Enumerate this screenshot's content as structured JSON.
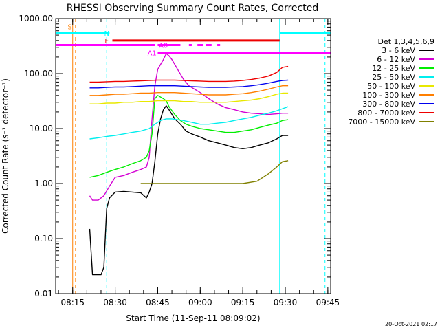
{
  "window": {
    "background": "#ffffff"
  },
  "chart_data": {
    "type": "line",
    "title": "RHESSI Observing Summary Count Rates, Corrected",
    "xlabel": "Start Time (11-Sep-11 08:09:02)",
    "ylabel": "Corrected Count Rate (s⁻¹ detector⁻¹)",
    "yscale": "log",
    "ylim": [
      0.01,
      1000
    ],
    "xlim": [
      "08:09",
      "09:46"
    ],
    "x_ticks": [
      "08:15",
      "08:30",
      "08:45",
      "09:00",
      "09:15",
      "09:30",
      "09:45"
    ],
    "y_ticks": [
      "0.01",
      "0.10",
      "1.00",
      "10.00",
      "100.00",
      "1000.00"
    ],
    "grid": false,
    "legend_title": "Det 1,3,4,5,6,9",
    "legend_position": "right",
    "timestamp": "20-Oct-2021 02:17",
    "series": [
      {
        "name": "3 - 6 keV",
        "color": "#000000",
        "points": [
          [
            "08:21",
            0.15
          ],
          [
            "08:22",
            0.022
          ],
          [
            "08:24",
            0.022
          ],
          [
            "08:25",
            0.022
          ],
          [
            "08:26",
            0.03
          ],
          [
            "08:27",
            0.35
          ],
          [
            "08:28",
            0.55
          ],
          [
            "08:30",
            0.7
          ],
          [
            "08:33",
            0.72
          ],
          [
            "08:36",
            0.7
          ],
          [
            "08:39",
            0.68
          ],
          [
            "08:41",
            0.55
          ],
          [
            "08:42",
            0.7
          ],
          [
            "08:43",
            1.0
          ],
          [
            "08:44",
            2.5
          ],
          [
            "08:45",
            8
          ],
          [
            "08:46",
            15
          ],
          [
            "08:47",
            22
          ],
          [
            "08:48",
            26
          ],
          [
            "08:49",
            22
          ],
          [
            "08:51",
            15
          ],
          [
            "08:53",
            12
          ],
          [
            "08:55",
            9
          ],
          [
            "08:57",
            8
          ],
          [
            "09:00",
            7
          ],
          [
            "09:03",
            6
          ],
          [
            "09:06",
            5.5
          ],
          [
            "09:09",
            5
          ],
          [
            "09:12",
            4.5
          ],
          [
            "09:15",
            4.3
          ],
          [
            "09:18",
            4.5
          ],
          [
            "09:21",
            5
          ],
          [
            "09:24",
            5.5
          ],
          [
            "09:27",
            6.5
          ],
          [
            "09:29",
            7.5
          ],
          [
            "09:31",
            7.5
          ]
        ]
      },
      {
        "name": "6 - 12 keV",
        "color": "#d400d4",
        "points": [
          [
            "08:21",
            0.6
          ],
          [
            "08:22",
            0.5
          ],
          [
            "08:24",
            0.5
          ],
          [
            "08:26",
            0.6
          ],
          [
            "08:28",
            0.9
          ],
          [
            "08:30",
            1.3
          ],
          [
            "08:33",
            1.4
          ],
          [
            "08:36",
            1.6
          ],
          [
            "08:39",
            1.8
          ],
          [
            "08:41",
            2.0
          ],
          [
            "08:42",
            3
          ],
          [
            "08:43",
            15
          ],
          [
            "08:44",
            60
          ],
          [
            "08:45",
            120
          ],
          [
            "08:47",
            180
          ],
          [
            "08:48",
            230
          ],
          [
            "08:49",
            210
          ],
          [
            "08:50",
            180
          ],
          [
            "08:52",
            120
          ],
          [
            "08:54",
            80
          ],
          [
            "08:56",
            60
          ],
          [
            "09:00",
            45
          ],
          [
            "09:03",
            35
          ],
          [
            "09:06",
            28
          ],
          [
            "09:09",
            24
          ],
          [
            "09:12",
            22
          ],
          [
            "09:15",
            20
          ],
          [
            "09:18",
            19
          ],
          [
            "09:21",
            18.5
          ],
          [
            "09:24",
            18
          ],
          [
            "09:27",
            18.5
          ],
          [
            "09:29",
            19
          ],
          [
            "09:31",
            19
          ]
        ]
      },
      {
        "name": "12 - 25 keV",
        "color": "#00ee00",
        "points": [
          [
            "08:21",
            1.3
          ],
          [
            "08:24",
            1.4
          ],
          [
            "08:27",
            1.6
          ],
          [
            "08:30",
            1.8
          ],
          [
            "08:33",
            2.0
          ],
          [
            "08:36",
            2.3
          ],
          [
            "08:39",
            2.6
          ],
          [
            "08:41",
            3.0
          ],
          [
            "08:42",
            4
          ],
          [
            "08:43",
            8
          ],
          [
            "08:44",
            35
          ],
          [
            "08:45",
            40
          ],
          [
            "08:47",
            35
          ],
          [
            "08:48",
            32
          ],
          [
            "08:49",
            25
          ],
          [
            "08:51",
            18
          ],
          [
            "08:53",
            14
          ],
          [
            "08:55",
            12
          ],
          [
            "08:57",
            11
          ],
          [
            "09:00",
            10
          ],
          [
            "09:03",
            9.5
          ],
          [
            "09:06",
            9
          ],
          [
            "09:09",
            8.5
          ],
          [
            "09:12",
            8.5
          ],
          [
            "09:15",
            9
          ],
          [
            "09:18",
            9.5
          ],
          [
            "09:21",
            10.5
          ],
          [
            "09:24",
            11.5
          ],
          [
            "09:27",
            12.5
          ],
          [
            "09:29",
            14
          ],
          [
            "09:31",
            14.5
          ]
        ]
      },
      {
        "name": "25 - 50 keV",
        "color": "#00eeee",
        "points": [
          [
            "08:21",
            6.5
          ],
          [
            "08:24",
            6.8
          ],
          [
            "08:27",
            7.2
          ],
          [
            "08:30",
            7.5
          ],
          [
            "08:33",
            8
          ],
          [
            "08:36",
            8.5
          ],
          [
            "08:39",
            9
          ],
          [
            "08:42",
            10
          ],
          [
            "08:44",
            12
          ],
          [
            "08:46",
            14
          ],
          [
            "08:48",
            15
          ],
          [
            "08:50",
            15
          ],
          [
            "08:52",
            14.5
          ],
          [
            "08:54",
            14
          ],
          [
            "08:57",
            13
          ],
          [
            "09:00",
            12
          ],
          [
            "09:03",
            12
          ],
          [
            "09:06",
            12.5
          ],
          [
            "09:09",
            13
          ],
          [
            "09:12",
            14
          ],
          [
            "09:15",
            15
          ],
          [
            "09:18",
            16
          ],
          [
            "09:21",
            17.5
          ],
          [
            "09:24",
            19
          ],
          [
            "09:27",
            21
          ],
          [
            "09:29",
            23
          ],
          [
            "09:31",
            25
          ]
        ]
      },
      {
        "name": "50 - 100 keV",
        "color": "#e8e800",
        "points": [
          [
            "08:21",
            28
          ],
          [
            "08:24",
            28
          ],
          [
            "08:27",
            29
          ],
          [
            "08:30",
            29
          ],
          [
            "08:33",
            30
          ],
          [
            "08:36",
            30
          ],
          [
            "08:39",
            31
          ],
          [
            "08:42",
            31
          ],
          [
            "08:45",
            32
          ],
          [
            "08:48",
            32
          ],
          [
            "08:51",
            32
          ],
          [
            "08:54",
            31
          ],
          [
            "08:57",
            31
          ],
          [
            "09:00",
            30
          ],
          [
            "09:03",
            30
          ],
          [
            "09:06",
            30
          ],
          [
            "09:09",
            30
          ],
          [
            "09:12",
            31
          ],
          [
            "09:15",
            32
          ],
          [
            "09:18",
            33
          ],
          [
            "09:21",
            35
          ],
          [
            "09:24",
            38
          ],
          [
            "09:27",
            42
          ],
          [
            "09:29",
            44
          ],
          [
            "09:31",
            44
          ]
        ]
      },
      {
        "name": "100 - 300 keV",
        "color": "#ff7f00",
        "points": [
          [
            "08:21",
            40
          ],
          [
            "08:24",
            40
          ],
          [
            "08:27",
            41
          ],
          [
            "08:30",
            42
          ],
          [
            "08:33",
            42
          ],
          [
            "08:36",
            43
          ],
          [
            "08:39",
            44
          ],
          [
            "08:42",
            44
          ],
          [
            "08:45",
            45
          ],
          [
            "08:48",
            45
          ],
          [
            "08:51",
            45
          ],
          [
            "08:54",
            44
          ],
          [
            "08:57",
            43
          ],
          [
            "09:00",
            42
          ],
          [
            "09:03",
            41
          ],
          [
            "09:06",
            41
          ],
          [
            "09:09",
            41
          ],
          [
            "09:12",
            42
          ],
          [
            "09:15",
            43
          ],
          [
            "09:18",
            45
          ],
          [
            "09:21",
            48
          ],
          [
            "09:24",
            52
          ],
          [
            "09:27",
            57
          ],
          [
            "09:29",
            60
          ],
          [
            "09:31",
            60
          ]
        ]
      },
      {
        "name": "300 - 800 keV",
        "color": "#0000ee",
        "points": [
          [
            "08:21",
            55
          ],
          [
            "08:24",
            55
          ],
          [
            "08:27",
            56
          ],
          [
            "08:30",
            57
          ],
          [
            "08:33",
            57
          ],
          [
            "08:36",
            58
          ],
          [
            "08:39",
            59
          ],
          [
            "08:42",
            60
          ],
          [
            "08:45",
            60
          ],
          [
            "08:48",
            60
          ],
          [
            "08:51",
            60
          ],
          [
            "08:54",
            59
          ],
          [
            "08:57",
            58
          ],
          [
            "09:00",
            57
          ],
          [
            "09:03",
            56
          ],
          [
            "09:06",
            56
          ],
          [
            "09:09",
            56
          ],
          [
            "09:12",
            57
          ],
          [
            "09:15",
            58
          ],
          [
            "09:18",
            60
          ],
          [
            "09:21",
            63
          ],
          [
            "09:24",
            67
          ],
          [
            "09:27",
            72
          ],
          [
            "09:29",
            75
          ],
          [
            "09:31",
            76
          ]
        ]
      },
      {
        "name": "800 - 7000 keV",
        "color": "#ee0000",
        "points": [
          [
            "08:21",
            70
          ],
          [
            "08:24",
            70
          ],
          [
            "08:27",
            71
          ],
          [
            "08:30",
            72
          ],
          [
            "08:33",
            72
          ],
          [
            "08:36",
            73
          ],
          [
            "08:39",
            74
          ],
          [
            "08:42",
            75
          ],
          [
            "08:45",
            76
          ],
          [
            "08:48",
            76
          ],
          [
            "08:51",
            76
          ],
          [
            "08:54",
            75
          ],
          [
            "08:57",
            74
          ],
          [
            "09:00",
            73
          ],
          [
            "09:03",
            72
          ],
          [
            "09:06",
            72
          ],
          [
            "09:09",
            72
          ],
          [
            "09:12",
            73
          ],
          [
            "09:15",
            75
          ],
          [
            "09:18",
            78
          ],
          [
            "09:21",
            83
          ],
          [
            "09:24",
            90
          ],
          [
            "09:27",
            105
          ],
          [
            "09:29",
            130
          ],
          [
            "09:31",
            135
          ]
        ]
      },
      {
        "name": "7000 - 15000 keV",
        "color": "#808000",
        "points": [
          [
            "08:39",
            1.0
          ],
          [
            "08:45",
            1.0
          ],
          [
            "08:50",
            1.0
          ],
          [
            "08:55",
            1.0
          ],
          [
            "09:00",
            1.0
          ],
          [
            "09:05",
            1.0
          ],
          [
            "09:10",
            1.0
          ],
          [
            "09:15",
            1.0
          ],
          [
            "09:20",
            1.1
          ],
          [
            "09:24",
            1.5
          ],
          [
            "09:27",
            2.0
          ],
          [
            "09:29",
            2.5
          ],
          [
            "09:31",
            2.6
          ]
        ]
      }
    ],
    "annotations": [
      {
        "label": "S",
        "color": "#ff7f00",
        "x": "08:14",
        "y": 720,
        "kind": "marker"
      },
      {
        "label": "N",
        "color": "#00ffff",
        "x": "08:27",
        "y": 550,
        "kind": "band-label"
      },
      {
        "label": "F",
        "color": "#ff0000",
        "x": "08:27",
        "y": 400,
        "kind": "band-label"
      },
      {
        "label": "A0",
        "color": "#ff00ff",
        "x": "08:47",
        "y": 330,
        "kind": "band-label"
      },
      {
        "label": "A1",
        "color": "#ff00ff",
        "x": "08:43",
        "y": 240,
        "kind": "band-label"
      }
    ],
    "state_bars": [
      {
        "label": "N",
        "color": "#00ffff",
        "y": 550,
        "segments": [
          [
            "08:09",
            "08:28"
          ],
          [
            "09:28",
            "09:46"
          ]
        ]
      },
      {
        "label": "F",
        "color": "#ee0000",
        "y": 400,
        "segments": [
          [
            "08:29",
            "09:28"
          ]
        ]
      },
      {
        "label": "A0",
        "color": "#ff00ff",
        "y": 330,
        "segments": [
          [
            "08:09",
            "08:44"
          ],
          [
            "08:45",
            "08:53"
          ],
          [
            "08:56",
            "08:57"
          ],
          [
            "08:59",
            "09:01"
          ],
          [
            "09:02",
            "09:04"
          ],
          [
            "09:06",
            "09:07"
          ]
        ]
      },
      {
        "label": "A1",
        "color": "#ff00ff",
        "y": 240,
        "segments": [
          [
            "08:45",
            "09:46"
          ]
        ]
      }
    ],
    "vertical_markers": [
      {
        "x": "08:09",
        "color": "#00ffff",
        "style": "solid"
      },
      {
        "x": "08:27",
        "color": "#00ffff",
        "style": "dashed"
      },
      {
        "x": "09:28",
        "color": "#00ffff",
        "style": "solid"
      },
      {
        "x": "09:44",
        "color": "#00ffff",
        "style": "dashed"
      },
      {
        "x": "08:15",
        "color": "#ff7f00",
        "style": "solid"
      },
      {
        "x": "08:16",
        "color": "#ff7f00",
        "style": "dashed"
      }
    ]
  }
}
